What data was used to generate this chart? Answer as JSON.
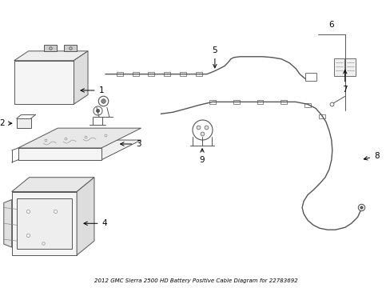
{
  "title": "2012 GMC Sierra 2500 HD Battery Positive Cable Diagram for 22783692",
  "bg_color": "#ffffff",
  "line_color": "#555555",
  "label_color": "#000000",
  "fig_width": 4.89,
  "fig_height": 3.6,
  "dpi": 100,
  "lw": 0.7,
  "gray": "#888888"
}
